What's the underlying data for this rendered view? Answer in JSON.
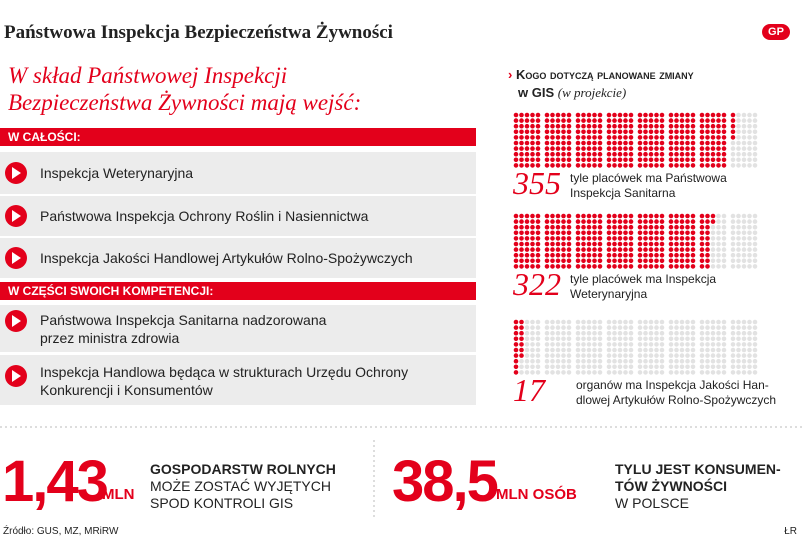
{
  "header": {
    "title": "Państwowa Inspekcja Bezpieczeństwa Żywności",
    "logo": "GP"
  },
  "left": {
    "heading": [
      "W skład Państwowej Inspekcji",
      "Bezpieczeństwa Żywności mają wejść:"
    ],
    "sections": [
      {
        "label": "W CAŁOŚCI:",
        "items": [
          [
            "Inspekcja Weterynaryjna"
          ],
          [
            "Państwowa Inspekcja Ochrony Roślin i Nasiennictwa"
          ],
          [
            "Inspekcja Jakości Handlowej Artykułów Rolno-Spożywczych"
          ]
        ]
      },
      {
        "label": "W CZĘŚCI SWOICH KOMPETENCJI:",
        "items": [
          [
            "Państwowa Inspekcja Sanitarna nadzorowana",
            "przez ministra zdrowia"
          ],
          [
            "Inspekcja Handlowa będąca w strukturach Urzędu Ochrony",
            "Konkurencji i Konsumentów"
          ]
        ]
      }
    ]
  },
  "right": {
    "title": "Kogo dotyczą planowane zmiany",
    "title2": "w GIS",
    "subtitle": "(w projekcie)",
    "groups": [
      {
        "value": 355,
        "lines": [
          "tyle placówek ma Państwowa",
          "Inspekcja Sanitarna"
        ]
      },
      {
        "value": 322,
        "lines": [
          "tyle placówek ma Inspekcja",
          "Weterynaryjna"
        ]
      },
      {
        "value": 17,
        "lines": [
          "organów ma Inspekcja Jakości Han-",
          "dlowej Artykułów Rolno-Spożywczych"
        ]
      }
    ]
  },
  "stats": [
    {
      "number": "1,43",
      "unit": "MLN",
      "lines": [
        "GOSPODARSTW ROLNYCH",
        "MOŻE ZOSTAĆ WYJĘTYCH",
        "SPOD KONTROLI GIS"
      ]
    },
    {
      "number": "38,5",
      "unit": "MLN OSÓB",
      "lines": [
        "TYLU JEST KONSUMEN-",
        "TÓW ŻYWNOŚCI",
        "W POLSCE"
      ]
    }
  ],
  "footer": {
    "source": "Źródło: GUS, MZ, MRiRW",
    "credit": "ŁR"
  }
}
